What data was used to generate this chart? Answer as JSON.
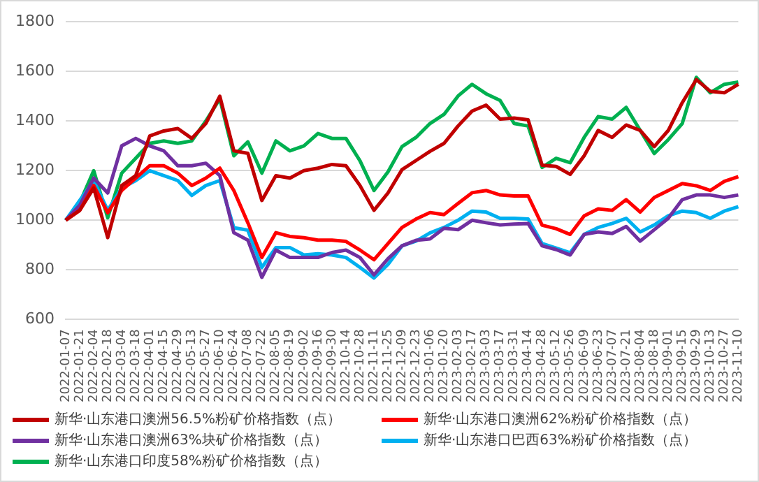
{
  "chart_data": {
    "type": "line",
    "categories": [
      "2022-01-07",
      "2022-01-21",
      "2022-02-04",
      "2022-02-18",
      "2022-03-04",
      "2022-03-18",
      "2022-04-01",
      "2022-04-15",
      "2022-04-29",
      "2022-05-13",
      "2022-05-27",
      "2022-06-10",
      "2022-06-24",
      "2022-07-08",
      "2022-07-22",
      "2022-08-05",
      "2022-08-19",
      "2022-09-02",
      "2022-09-16",
      "2022-09-30",
      "2022-10-14",
      "2022-10-28",
      "2022-11-11",
      "2022-11-25",
      "2022-12-09",
      "2022-12-23",
      "2023-01-06",
      "2023-01-20",
      "2023-02-03",
      "2023-02-17",
      "2023-03-03",
      "2023-03-17",
      "2023-03-31",
      "2023-04-14",
      "2023-04-28",
      "2023-05-12",
      "2023-05-26",
      "2023-06-09",
      "2023-06-23",
      "2023-07-07",
      "2023-07-21",
      "2023-08-04",
      "2023-08-18",
      "2023-09-01",
      "2023-09-15",
      "2023-09-29",
      "2023-10-13",
      "2023-10-27",
      "2023-11-10"
    ],
    "series": [
      {
        "name": "新华·山东港口澳洲56.5%粉矿价格指数（点）",
        "color": "#c00000",
        "values": [
          1000,
          1040,
          1130,
          930,
          1140,
          1180,
          1340,
          1360,
          1370,
          1330,
          1390,
          1500,
          1280,
          1270,
          1080,
          1180,
          1170,
          1200,
          1210,
          1225,
          1220,
          1140,
          1040,
          1110,
          1204,
          1241,
          1278,
          1310,
          1380,
          1440,
          1464,
          1408,
          1412,
          1405,
          1222,
          1217,
          1185,
          1260,
          1362,
          1334,
          1384,
          1362,
          1297,
          1362,
          1474,
          1567,
          1520,
          1514,
          1548
        ]
      },
      {
        "name": "新华·山东港口澳洲62%粉矿价格指数（点）",
        "color": "#ff0000",
        "values": [
          1000,
          1040,
          1140,
          1030,
          1120,
          1170,
          1220,
          1220,
          1190,
          1140,
          1170,
          1210,
          1120,
          990,
          850,
          950,
          935,
          930,
          920,
          920,
          915,
          880,
          841,
          906,
          971,
          1005,
          1031,
          1023,
          1068,
          1111,
          1120,
          1102,
          1098,
          1098,
          980,
          966,
          943,
          1018,
          1046,
          1040,
          1083,
          1033,
          1092,
          1120,
          1148,
          1139,
          1120,
          1157,
          1176
        ]
      },
      {
        "name": "新华·山东港口澳洲63%块矿价格指数（点）",
        "color": "#7030a0",
        "values": [
          1000,
          1060,
          1170,
          1110,
          1300,
          1330,
          1300,
          1280,
          1220,
          1220,
          1230,
          1180,
          950,
          920,
          770,
          880,
          850,
          850,
          850,
          870,
          880,
          850,
          780,
          845,
          897,
          919,
          925,
          968,
          962,
          1000,
          990,
          981,
          985,
          987,
          897,
          882,
          860,
          943,
          953,
          947,
          975,
          916,
          962,
          1008,
          1083,
          1102,
          1102,
          1092,
          1102
        ]
      },
      {
        "name": "新华·山东港口巴西63%粉矿价格指数（点）",
        "color": "#00b0f0",
        "values": [
          1000,
          1080,
          1160,
          1040,
          1130,
          1160,
          1200,
          1180,
          1160,
          1100,
          1140,
          1160,
          970,
          960,
          810,
          890,
          890,
          860,
          865,
          860,
          850,
          810,
          767,
          822,
          897,
          916,
          949,
          971,
          1000,
          1037,
          1033,
          1008,
          1008,
          1005,
          906,
          888,
          869,
          943,
          971,
          987,
          1008,
          953,
          981,
          1018,
          1037,
          1031,
          1008,
          1037,
          1055
        ]
      },
      {
        "name": "新华·山东港口印度58%粉矿价格指数（点）",
        "color": "#00b050",
        "values": [
          1000,
          1070,
          1200,
          1010,
          1190,
          1250,
          1310,
          1320,
          1310,
          1320,
          1400,
          1490,
          1260,
          1316,
          1190,
          1320,
          1280,
          1300,
          1350,
          1330,
          1330,
          1240,
          1120,
          1195,
          1297,
          1334,
          1390,
          1427,
          1501,
          1548,
          1510,
          1483,
          1390,
          1380,
          1213,
          1250,
          1232,
          1334,
          1418,
          1408,
          1455,
          1362,
          1269,
          1325,
          1390,
          1576,
          1514,
          1548,
          1557
        ]
      }
    ],
    "ylim": [
      600,
      1800
    ],
    "yticks": [
      600,
      800,
      1000,
      1200,
      1400,
      1600,
      1800
    ],
    "grid": "y",
    "legend": "bottom",
    "marker": "none",
    "line_style": "solid"
  }
}
